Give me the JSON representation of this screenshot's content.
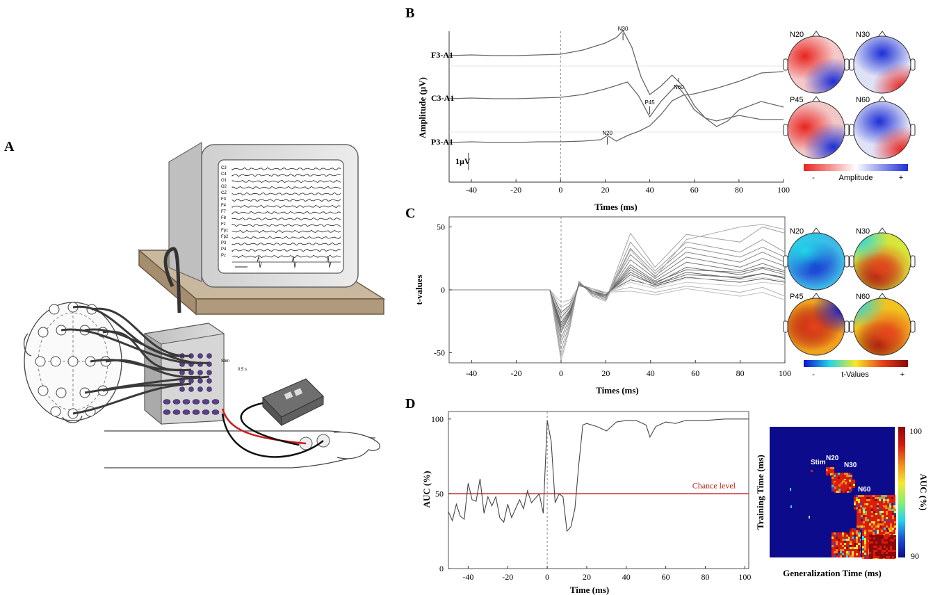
{
  "panels": {
    "a": "A",
    "b": "B",
    "c": "C",
    "d": "D"
  },
  "apparatus": {
    "channels": [
      "C3",
      "C4",
      "O1",
      "O2",
      "CZ",
      "F3",
      "F4",
      "F7",
      "F8",
      "Fz",
      "Fp1",
      "Fp2",
      "P3",
      "P4",
      "Pz"
    ],
    "stim_label": "Stim",
    "scale_label": "0.5 s"
  },
  "chart_data": [
    {
      "type": "line",
      "panel": "B",
      "xlabel": "Times (ms)",
      "ylabel": "Amplitude (µV)",
      "xlim": [
        -50,
        100
      ],
      "xticks": [
        -40,
        -20,
        0,
        20,
        40,
        60,
        80,
        100
      ],
      "scale_bar": "1µV",
      "series": [
        {
          "name": "F3-A1",
          "x": [
            -50,
            -40,
            -30,
            -20,
            -10,
            0,
            10,
            20,
            25,
            28,
            32,
            36,
            40,
            45,
            50,
            55,
            60,
            65,
            70,
            80,
            90,
            100
          ],
          "y": [
            0,
            0.05,
            0,
            0,
            0.05,
            0.1,
            0.4,
            0.9,
            1.3,
            1.8,
            0.6,
            -1.5,
            -2.8,
            -2.2,
            -1.4,
            -2.2,
            -3.6,
            -4.5,
            -4.7,
            -4.3,
            -4.6,
            -4.6
          ]
        },
        {
          "name": "C3-A1",
          "x": [
            -50,
            -40,
            -30,
            -20,
            -10,
            0,
            10,
            20,
            30,
            35,
            40,
            45,
            52,
            56,
            60,
            70,
            75,
            80,
            90,
            100
          ],
          "y": [
            0,
            0.05,
            0,
            0,
            0.05,
            0.1,
            0.3,
            0.7,
            1.2,
            0.2,
            -1.3,
            -0.2,
            1.0,
            0.2,
            -0.8,
            -2.0,
            -1.6,
            -0.8,
            -0.2,
            -0.6
          ]
        },
        {
          "name": "P3-A1",
          "x": [
            -50,
            -40,
            -30,
            -20,
            -10,
            0,
            10,
            18,
            21,
            25,
            30,
            35,
            40,
            45,
            50,
            55,
            60,
            70,
            80,
            90,
            100
          ],
          "y": [
            0,
            0.05,
            0,
            0,
            0.05,
            0.05,
            0.1,
            0.2,
            0.5,
            0.1,
            0.5,
            0.8,
            1.2,
            2.0,
            3.0,
            3.4,
            3.5,
            3.9,
            4.4,
            5.0,
            5.1
          ]
        }
      ],
      "annotations": [
        "N30",
        "N60",
        "P45",
        "N20"
      ],
      "topomaps": [
        "N20",
        "N30",
        "P45",
        "N60"
      ],
      "colorbar": {
        "label": "Amplitude",
        "min_label": "-",
        "max_label": "+",
        "colors": [
          "#e8241f",
          "#ffffff",
          "#1d2fd6"
        ]
      }
    },
    {
      "type": "line",
      "panel": "C",
      "xlabel": "Times (ms)",
      "ylabel": "t-values",
      "xlim": [
        -50,
        100
      ],
      "ylim": [
        -58,
        58
      ],
      "xticks": [
        -40,
        -20,
        0,
        20,
        40,
        60,
        80,
        100
      ],
      "yticks": [
        -50,
        0,
        50
      ],
      "series_count": 16,
      "peak_times": [
        -5,
        0,
        4,
        8,
        14,
        20,
        31,
        42,
        56,
        80,
        90,
        100
      ],
      "series_values": [
        [
          0,
          -18,
          -12,
          4,
          1,
          -3,
          8,
          3,
          10,
          6,
          9,
          6
        ],
        [
          0,
          -22,
          -14,
          4,
          0,
          -4,
          12,
          4,
          14,
          9,
          13,
          9
        ],
        [
          0,
          -26,
          -16,
          5,
          -1,
          -5,
          16,
          5,
          18,
          12,
          17,
          12
        ],
        [
          0,
          -30,
          -18,
          5,
          -2,
          -5,
          20,
          7,
          22,
          15,
          21,
          15
        ],
        [
          0,
          -34,
          -20,
          5,
          -2,
          -6,
          24,
          9,
          26,
          18,
          25,
          19
        ],
        [
          0,
          -38,
          -22,
          6,
          -3,
          -6,
          28,
          11,
          30,
          22,
          30,
          22
        ],
        [
          0,
          -42,
          -24,
          6,
          -3,
          -7,
          33,
          13,
          34,
          26,
          34,
          26
        ],
        [
          0,
          -47,
          -26,
          6,
          -4,
          -8,
          38,
          15,
          38,
          30,
          40,
          30
        ],
        [
          0,
          -52,
          -28,
          7,
          -4,
          -8,
          45,
          18,
          44,
          38,
          50,
          45
        ],
        [
          0,
          -56,
          -30,
          7,
          -5,
          -9,
          32,
          10,
          40,
          50,
          52,
          48
        ],
        [
          0,
          -14,
          -10,
          3,
          1,
          -2,
          2,
          -2,
          3,
          -2,
          2,
          -5
        ],
        [
          0,
          -10,
          -8,
          3,
          1,
          -2,
          -1,
          -4,
          1,
          -5,
          -2,
          -8
        ],
        [
          0,
          -20,
          -13,
          4,
          0,
          -3,
          6,
          1,
          6,
          3,
          6,
          4
        ],
        [
          0,
          -24,
          -15,
          4,
          0,
          -4,
          10,
          2,
          9,
          8,
          10,
          7
        ],
        [
          0,
          -28,
          -17,
          4,
          -1,
          -4,
          14,
          4,
          12,
          10,
          13,
          10
        ],
        [
          0,
          -32,
          -19,
          5,
          -1,
          -5,
          18,
          6,
          16,
          14,
          18,
          14
        ]
      ],
      "topomaps": [
        "N20",
        "N30",
        "P45",
        "N60"
      ],
      "colorbar": {
        "label": "t-Values",
        "min_label": "-",
        "max_label": "+",
        "colors": [
          "#1111cc",
          "#22d6e8",
          "#f7e82a",
          "#e8441c",
          "#8a0808"
        ]
      }
    },
    {
      "type": "line",
      "panel": "D",
      "xlabel": "Time (ms)",
      "ylabel": "AUC (%)",
      "xlim": [
        -50,
        102
      ],
      "ylim": [
        0,
        105
      ],
      "xticks": [
        -40,
        -20,
        0,
        20,
        40,
        60,
        80,
        100
      ],
      "yticks": [
        0,
        50,
        100
      ],
      "chance_level": {
        "label": "Chance level",
        "value": 50,
        "color": "#c0201a"
      },
      "series": [
        {
          "x": [
            -50,
            -48,
            -46,
            -44,
            -42,
            -40,
            -38,
            -36,
            -34,
            -32,
            -30,
            -28,
            -26,
            -24,
            -22,
            -20,
            -18,
            -16,
            -14,
            -12,
            -10,
            -8,
            -6,
            -4,
            -2,
            0,
            2,
            4,
            6,
            8,
            10,
            12,
            14,
            16,
            18,
            20,
            25,
            30,
            35,
            40,
            45,
            50,
            52,
            55,
            60,
            65,
            70,
            80,
            90,
            100,
            102
          ],
          "y": [
            38,
            32,
            43,
            35,
            33,
            57,
            46,
            45,
            60,
            37,
            48,
            42,
            48,
            34,
            31,
            43,
            34,
            40,
            46,
            40,
            52,
            44,
            47,
            50,
            37,
            99,
            85,
            44,
            50,
            48,
            25,
            28,
            40,
            70,
            96,
            97,
            95,
            92,
            98,
            99,
            99,
            96,
            88,
            95,
            98,
            97,
            99,
            99,
            100,
            100,
            100
          ]
        }
      ],
      "heatmap": {
        "xlabel": "Generalization Time (ms)",
        "ylabel": "Training  Time (ms)",
        "colorbar_label": "AUC (%)",
        "colorbar_min": "90",
        "colorbar_max": "100",
        "labels": [
          "Stim",
          "N20",
          "N30",
          "N60"
        ]
      }
    }
  ]
}
